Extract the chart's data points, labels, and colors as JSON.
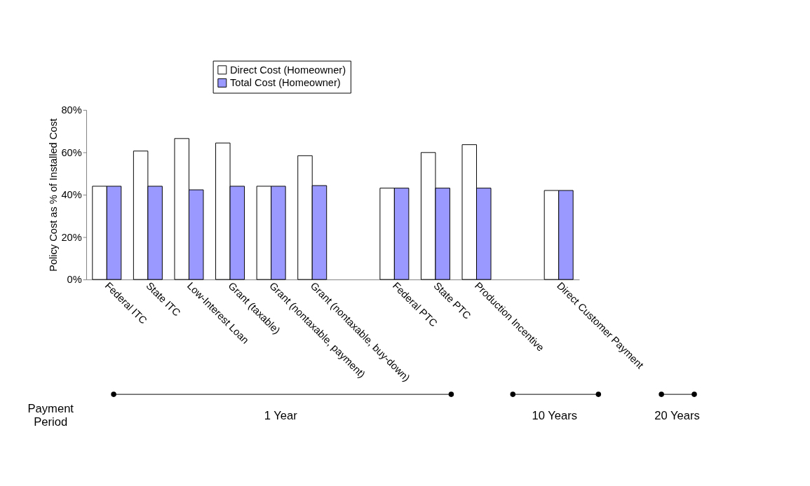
{
  "chart_data": {
    "type": "bar",
    "categories": [
      "Federal ITC",
      "State ITC",
      "Low-Interest Loan",
      "Grant (taxable)",
      "Grant (nontaxable, payment)",
      "Grant (nontaxable, buy-down)",
      null,
      "Federal PTC",
      "State PTC",
      "Production Incentive",
      null,
      "Direct Customer Payment"
    ],
    "series": [
      {
        "name": "Direct Cost (Homeowner)",
        "color": "#ffffff",
        "values": [
          44,
          60.6,
          66.5,
          64.4,
          44,
          58.4,
          null,
          43.1,
          59.9,
          63.6,
          null,
          42
        ]
      },
      {
        "name": "Total Cost (Homeowner)",
        "color": "#9999ff",
        "values": [
          44,
          44,
          42.3,
          44,
          44,
          44.3,
          null,
          43.1,
          43.1,
          43.1,
          null,
          42
        ]
      }
    ],
    "ylabel": "Policy Cost as % of Installed Cost",
    "ylim": [
      0,
      80
    ],
    "yticks": [
      {
        "value": 0,
        "label": "0%"
      },
      {
        "value": 20,
        "label": "20%"
      },
      {
        "value": 40,
        "label": "40%"
      },
      {
        "value": 60,
        "label": "60%"
      },
      {
        "value": 80,
        "label": "80%"
      }
    ],
    "annotations": [
      "Payment Period",
      "1 Year",
      "10 Years",
      "20 Years"
    ],
    "legend": "top",
    "grid": false
  }
}
